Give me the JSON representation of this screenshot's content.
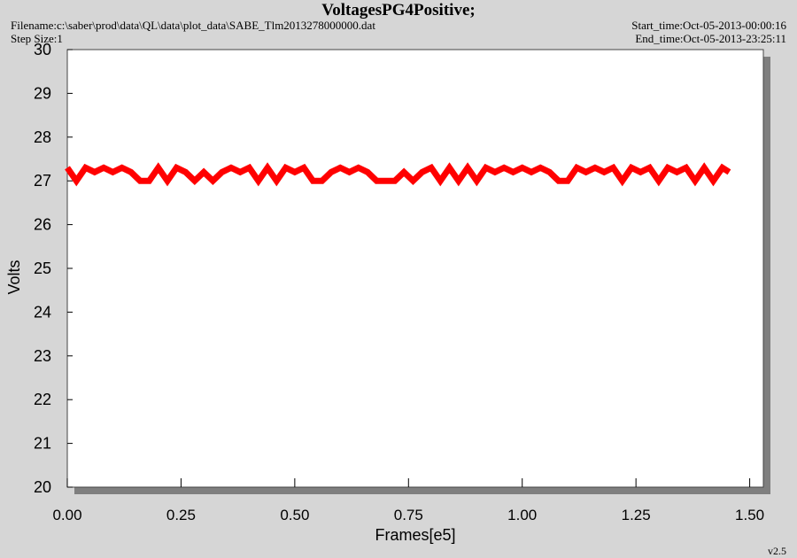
{
  "chart_data": {
    "type": "line",
    "title": "VoltagesPG4Positive;",
    "filename": "Filename:c:\\saber\\prod\\data\\QL\\data\\plot_data\\SABE_Tlm2013278000000.dat",
    "step_size": "Step Size:1",
    "start_time": "Start_time:Oct-05-2013-00:00:16",
    "end_time": "End_time:Oct-05-2013-23:25:11",
    "version": "v2.5",
    "xlabel": "Frames[e5]",
    "ylabel": "Volts",
    "color": "#ff0000",
    "xlim": [
      0,
      1.53
    ],
    "ylim": [
      20,
      30
    ],
    "xticks": [
      {
        "value": 0,
        "label": "0.00"
      },
      {
        "value": 0.25,
        "label": "0.25"
      },
      {
        "value": 0.5,
        "label": "0.50"
      },
      {
        "value": 0.75,
        "label": "0.75"
      },
      {
        "value": 1,
        "label": "1.00"
      },
      {
        "value": 1.25,
        "label": "1.25"
      },
      {
        "value": 1.5,
        "label": "1.50"
      }
    ],
    "yticks": [
      20,
      21,
      22,
      23,
      24,
      25,
      26,
      27,
      28,
      29,
      30
    ],
    "x": [
      0,
      0.02,
      0.04,
      0.06,
      0.08,
      0.1,
      0.12,
      0.14,
      0.16,
      0.18,
      0.2,
      0.22,
      0.24,
      0.26,
      0.28,
      0.3,
      0.32,
      0.34,
      0.36,
      0.38,
      0.4,
      0.42,
      0.44,
      0.46,
      0.48,
      0.5,
      0.52,
      0.54,
      0.56,
      0.58,
      0.6,
      0.62,
      0.64,
      0.66,
      0.68,
      0.7,
      0.72,
      0.74,
      0.76,
      0.78,
      0.8,
      0.82,
      0.84,
      0.86,
      0.88,
      0.9,
      0.92,
      0.94,
      0.96,
      0.98,
      1,
      1.02,
      1.04,
      1.06,
      1.08,
      1.1,
      1.12,
      1.14,
      1.16,
      1.18,
      1.2,
      1.22,
      1.24,
      1.26,
      1.28,
      1.3,
      1.32,
      1.34,
      1.36,
      1.38,
      1.4,
      1.42,
      1.44,
      1.455
    ],
    "values": [
      27.3,
      27.0,
      27.3,
      27.2,
      27.3,
      27.2,
      27.3,
      27.2,
      27.0,
      27.0,
      27.3,
      27.0,
      27.3,
      27.2,
      27.0,
      27.2,
      27.0,
      27.2,
      27.3,
      27.2,
      27.3,
      27.0,
      27.3,
      27.0,
      27.3,
      27.2,
      27.3,
      27.0,
      27.0,
      27.2,
      27.3,
      27.2,
      27.3,
      27.2,
      27.0,
      27.0,
      27.0,
      27.2,
      27.0,
      27.2,
      27.3,
      27.0,
      27.3,
      27.0,
      27.3,
      27.0,
      27.3,
      27.2,
      27.3,
      27.2,
      27.3,
      27.2,
      27.3,
      27.2,
      27.0,
      27.0,
      27.3,
      27.2,
      27.3,
      27.2,
      27.3,
      27.0,
      27.3,
      27.2,
      27.3,
      27.0,
      27.3,
      27.2,
      27.3,
      27.0,
      27.3,
      27.0,
      27.3,
      27.2
    ]
  }
}
